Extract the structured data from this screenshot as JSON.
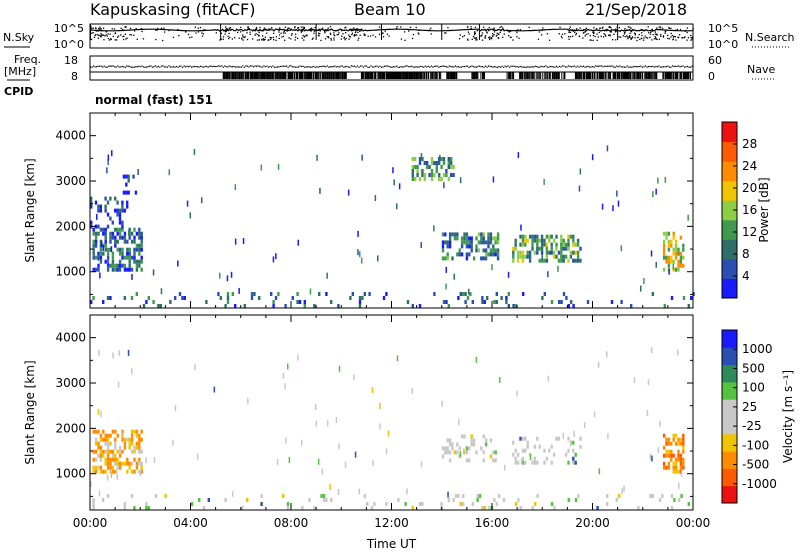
{
  "header": {
    "title": "Kapuskasing (fitACF)",
    "beam": "Beam 10",
    "date": "21/Sep/2018"
  },
  "side_labels": {
    "nsky": "N.Sky",
    "freq": "Freq.",
    "mhz": "[MHz]",
    "cpid": "CPID",
    "nsearch": "N.Search",
    "nave": "Nave"
  },
  "cpid_text": "normal (fast) 151",
  "colors": {
    "power_scale": [
      "#1a1aff",
      "#2b4fb0",
      "#2e6f6a",
      "#3f9a4f",
      "#8ccf44",
      "#f2c400",
      "#ff8c00",
      "#ff5a00",
      "#ee1111"
    ],
    "velocity_scale": [
      "#ee1111",
      "#ff5a00",
      "#ff8c00",
      "#f2c400",
      "#c8c8c8",
      "#c8c8c8",
      "#55c240",
      "#2e8a5a",
      "#2b4fb0",
      "#1a1aff"
    ]
  },
  "chart_data": [
    {
      "type": "line",
      "name": "noise",
      "left_axis_label": "N.Sky",
      "right_axis_label": "N.Search",
      "left_ticks": [
        "10^5",
        "10^0"
      ],
      "right_ticks": [
        "10^5",
        "10^0"
      ],
      "x_ticks": [
        "00:00",
        "04:00",
        "08:00",
        "12:00",
        "16:00",
        "20:00",
        "00:00"
      ],
      "xlim": [
        0,
        24
      ]
    },
    {
      "type": "scatter",
      "name": "freq_nave",
      "left_axis_label": "Freq. [MHz]",
      "right_axis_label": "Nave",
      "left_ticks": [
        "18",
        "8"
      ],
      "right_ticks": [
        "60",
        "0"
      ],
      "xlim": [
        0,
        24
      ]
    },
    {
      "type": "heatmap",
      "name": "power",
      "ylabel": "Slant Range [km]",
      "xlabel": "",
      "ylim": [
        200,
        4500
      ],
      "xlim": [
        0,
        24
      ],
      "y_ticks": [
        1000,
        2000,
        3000,
        4000
      ],
      "x_ticks": [
        "00:00",
        "04:00",
        "08:00",
        "12:00",
        "16:00",
        "20:00",
        "00:00"
      ],
      "colorbar": {
        "label": "Power [dB]",
        "ticks": [
          "28",
          "24",
          "20",
          "16",
          "12",
          "8",
          "4"
        ]
      },
      "regions": [
        {
          "t": [
            0.1,
            2.1
          ],
          "r": [
            1000,
            1950
          ],
          "dominant_db": 10
        },
        {
          "t": [
            0.0,
            1.5
          ],
          "r": [
            1950,
            2600
          ],
          "dominant_db": 6
        },
        {
          "t": [
            1.3,
            1.8
          ],
          "r": [
            2700,
            3100
          ],
          "dominant_db": 6
        },
        {
          "t": [
            14.0,
            16.2
          ],
          "r": [
            1250,
            1800
          ],
          "dominant_db": 12
        },
        {
          "t": [
            16.8,
            19.5
          ],
          "r": [
            1200,
            1800
          ],
          "dominant_db": 16
        },
        {
          "t": [
            12.8,
            14.5
          ],
          "r": [
            3000,
            3500
          ],
          "dominant_db": 14
        },
        {
          "t": [
            22.8,
            23.6
          ],
          "r": [
            1000,
            1800
          ],
          "dominant_db": 22
        },
        {
          "t": [
            0.0,
            24.0
          ],
          "r": [
            200,
            500
          ],
          "dominant_db": 10
        }
      ]
    },
    {
      "type": "heatmap",
      "name": "velocity",
      "ylabel": "Slant Range [km]",
      "xlabel": "Time UT",
      "ylim": [
        200,
        4500
      ],
      "xlim": [
        0,
        24
      ],
      "y_ticks": [
        1000,
        2000,
        3000,
        4000
      ],
      "x_ticks": [
        "00:00",
        "04:00",
        "08:00",
        "12:00",
        "16:00",
        "20:00",
        "00:00"
      ],
      "colorbar": {
        "label": "Velocity [m s⁻¹]",
        "ticks": [
          "1000",
          "500",
          "100",
          "25",
          "-25",
          "-100",
          "-500",
          "-1000"
        ]
      },
      "regions": [
        {
          "t": [
            0.1,
            2.1
          ],
          "r": [
            1000,
            1950
          ],
          "dominant_ms": -100
        },
        {
          "t": [
            14.0,
            16.2
          ],
          "r": [
            1250,
            1800
          ],
          "dominant_ms": 0
        },
        {
          "t": [
            16.8,
            19.5
          ],
          "r": [
            1200,
            1800
          ],
          "dominant_ms": 0
        },
        {
          "t": [
            22.8,
            23.6
          ],
          "r": [
            1000,
            1800
          ],
          "dominant_ms": -300
        },
        {
          "t": [
            0.0,
            24.0
          ],
          "r": [
            200,
            500
          ],
          "dominant_ms": 0
        }
      ]
    }
  ]
}
